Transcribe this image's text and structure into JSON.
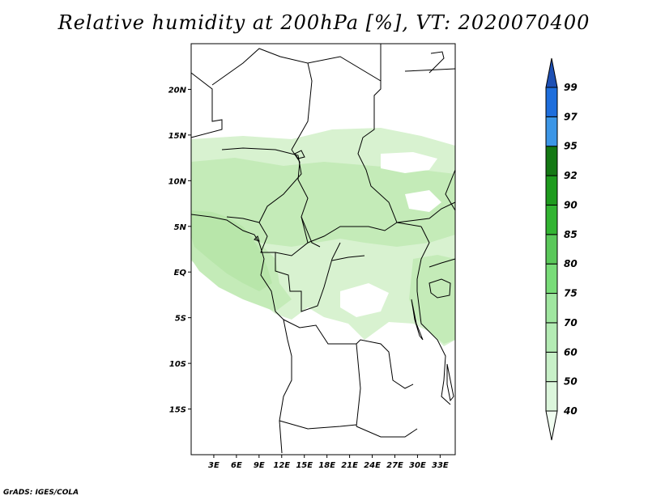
{
  "title": "Relative humidity at 200hPa [%], VT: 2020070400",
  "credit": "GrADS: IGES/COLA",
  "map": {
    "lon_range": [
      0,
      35
    ],
    "lat_range": [
      -20,
      25
    ],
    "lat_labels": [
      "20N",
      "15N",
      "10N",
      "5N",
      "EQ",
      "5S",
      "10S",
      "15S"
    ],
    "lat_values": [
      20,
      15,
      10,
      5,
      0,
      -5,
      -10,
      -15
    ],
    "lon_labels": [
      "3E",
      "6E",
      "9E",
      "12E",
      "15E",
      "18E",
      "21E",
      "24E",
      "27E",
      "30E",
      "33E"
    ],
    "lon_values": [
      3,
      6,
      9,
      12,
      15,
      18,
      21,
      24,
      27,
      30,
      33
    ]
  },
  "colorbar": {
    "labels": [
      "40",
      "50",
      "60",
      "70",
      "75",
      "80",
      "85",
      "90",
      "92",
      "95",
      "97",
      "99"
    ],
    "colors": [
      "#f0fcf0",
      "#dcf6dc",
      "#c8f0c8",
      "#b4ebb4",
      "#a0e6a0",
      "#78dc78",
      "#5ac85a",
      "#32b432",
      "#1e9b1e",
      "#147814",
      "#3c96e6",
      "#1e6edc",
      "#1e50b4"
    ]
  },
  "colors": {
    "light_green": "#d8f2d0",
    "mid_green": "#c4ebb8",
    "border": "#000000"
  }
}
